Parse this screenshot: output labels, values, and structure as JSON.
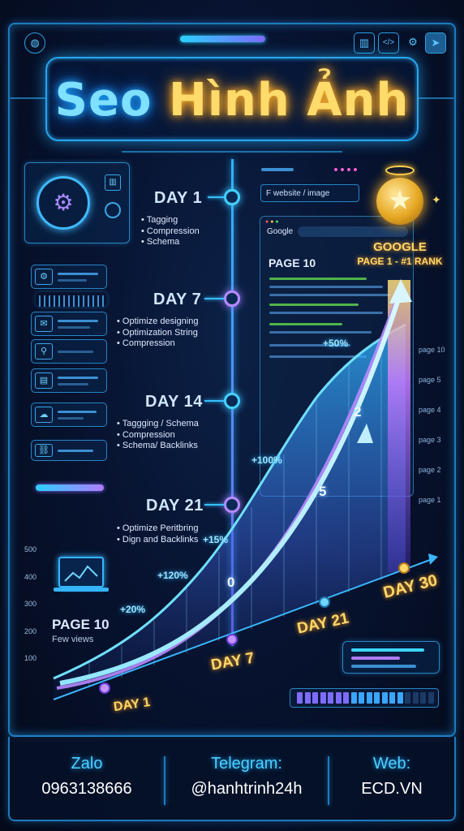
{
  "title": {
    "part1": "Seo",
    "part2": "Hình Ảnh"
  },
  "timeline": [
    {
      "day": "DAY 1",
      "items": [
        "Tagging",
        "Compression",
        "Schema"
      ]
    },
    {
      "day": "DAY 7",
      "items": [
        "Optimize designing",
        "Optimization String",
        "Compression"
      ]
    },
    {
      "day": "DAY 14",
      "items": [
        "Taggging / Schema",
        "Compression",
        "Schema/ Backlinks"
      ]
    },
    {
      "day": "DAY 21",
      "items": [
        "Optimize Peritbring",
        "Dign and Backlinks"
      ]
    }
  ],
  "search_placeholder": "F website / image",
  "browser": {
    "engine": "Google",
    "page_tag": "PAGE 10"
  },
  "google_rank": {
    "line1": "GOOGLE",
    "line2": "PAGE 1 - #1 RANK"
  },
  "rank_axis": [
    "page 10",
    "page 5",
    "page 4",
    "page 3",
    "page 2",
    "page 1"
  ],
  "y_axis": [
    "500",
    "400",
    "300",
    "200",
    "100"
  ],
  "growth_labels": [
    "+50%",
    "+100%",
    "+15%",
    "+120%",
    "+20%"
  ],
  "step_numbers": [
    "2",
    "5",
    "0"
  ],
  "axis_days": [
    "DAY 1",
    "DAY 7",
    "DAY 21",
    "DAY 30"
  ],
  "start_state": {
    "page": "PAGE 10",
    "note": "Few views"
  },
  "footer": {
    "zalo_label": "Zalo",
    "zalo_value": "0963138666",
    "telegram_label": "Telegram:",
    "telegram_value": "@hanhtrinh24h",
    "web_label": "Web:",
    "web_value": "ECD.VN"
  },
  "colors": {
    "accent": "#2eb3ff",
    "violet": "#7b61ff",
    "gold": "#ffd76a"
  }
}
